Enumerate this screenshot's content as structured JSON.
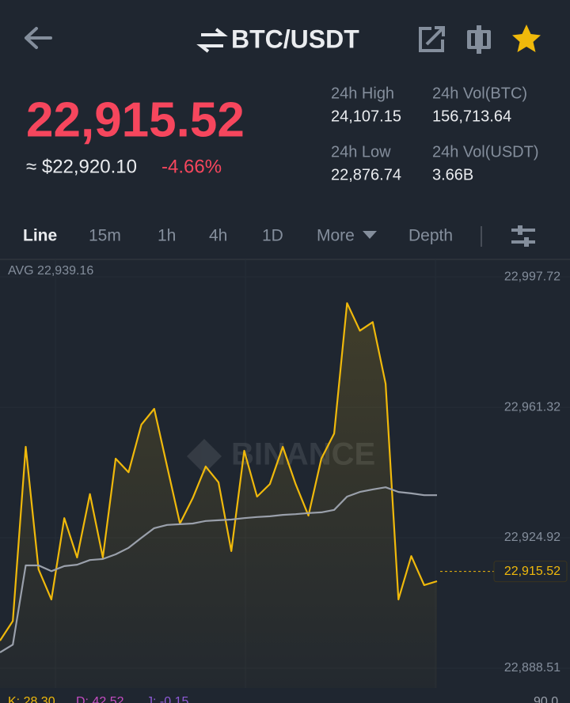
{
  "header": {
    "title": "BTC/USDT"
  },
  "ticker": {
    "price": "22,915.52",
    "fiat_price": "≈ $22,920.10",
    "change": "-4.66%",
    "stats": [
      {
        "label": "24h High",
        "value": "24,107.15"
      },
      {
        "label": "24h Vol(BTC)",
        "value": "156,713.64"
      },
      {
        "label": "24h Low",
        "value": "22,876.74"
      },
      {
        "label": "24h Vol(USDT)",
        "value": "3.66B"
      }
    ]
  },
  "tabs": [
    "Line",
    "15m",
    "1h",
    "4h",
    "1D",
    "More",
    "Depth"
  ],
  "chart_data": {
    "type": "line",
    "watermark": "BINANCE",
    "avg_label": "AVG 22,939.16",
    "last_price": {
      "value": 22915.52,
      "label": "22,915.52"
    },
    "categories": [
      null,
      null,
      null,
      null,
      null,
      null,
      null,
      null,
      null,
      null,
      null,
      null,
      null,
      null,
      null,
      null,
      null,
      null,
      null,
      null,
      null,
      null,
      null,
      null,
      null,
      null,
      null,
      null,
      null,
      null,
      null,
      null,
      null,
      null,
      null
    ],
    "series": [
      {
        "color": "#f0b90b",
        "values": [
          22896.2,
          22901.7,
          22950.3,
          22916.1,
          22907.7,
          22930.4,
          22919.4,
          22937.1,
          22919.4,
          22947.0,
          22943.2,
          22956.5,
          22960.9,
          22944.8,
          22928.9,
          22936.0,
          22944.8,
          22940.4,
          22921.2,
          22949.2,
          22936.4,
          22939.9,
          22950.3,
          22939.9,
          22931.1,
          22947.0,
          22954.0,
          22990.4,
          22982.7,
          22985.1,
          22967.9,
          22907.7,
          22919.8,
          22911.7,
          22912.8
        ]
      },
      {
        "color": "#9aa0ab",
        "values": [
          22892.9,
          22895.1,
          22917.2,
          22917.2,
          22915.6,
          22917.0,
          22917.4,
          22918.7,
          22919.0,
          22920.3,
          22922.1,
          22924.9,
          22927.6,
          22928.5,
          22928.7,
          22928.9,
          22929.6,
          22929.8,
          22930.0,
          22930.4,
          22930.7,
          22930.9,
          22931.3,
          22931.5,
          22931.8,
          22932.0,
          22932.7,
          22936.4,
          22937.7,
          22938.4,
          22939.0,
          22937.7,
          22937.3,
          22936.8,
          22936.8
        ]
      }
    ],
    "ylim": [
      22883.0,
      23002.6
    ],
    "yticks": [
      {
        "value": 22997.72,
        "label": "22,997.72"
      },
      {
        "value": 22961.32,
        "label": "22,961.32"
      },
      {
        "value": 22924.92,
        "label": "22,924.92"
      },
      {
        "value": 22888.51,
        "label": "22,888.51"
      }
    ],
    "grid": true
  },
  "indicators": [
    {
      "text": "K: 28.30",
      "color": "#f0b90b"
    },
    {
      "text": "D: 42.52",
      "color": "#c64cc3"
    },
    {
      "text": "J: -0.15",
      "color": "#8e5bd6"
    },
    {
      "text": "90.0",
      "color": "#9aa0ab"
    }
  ]
}
